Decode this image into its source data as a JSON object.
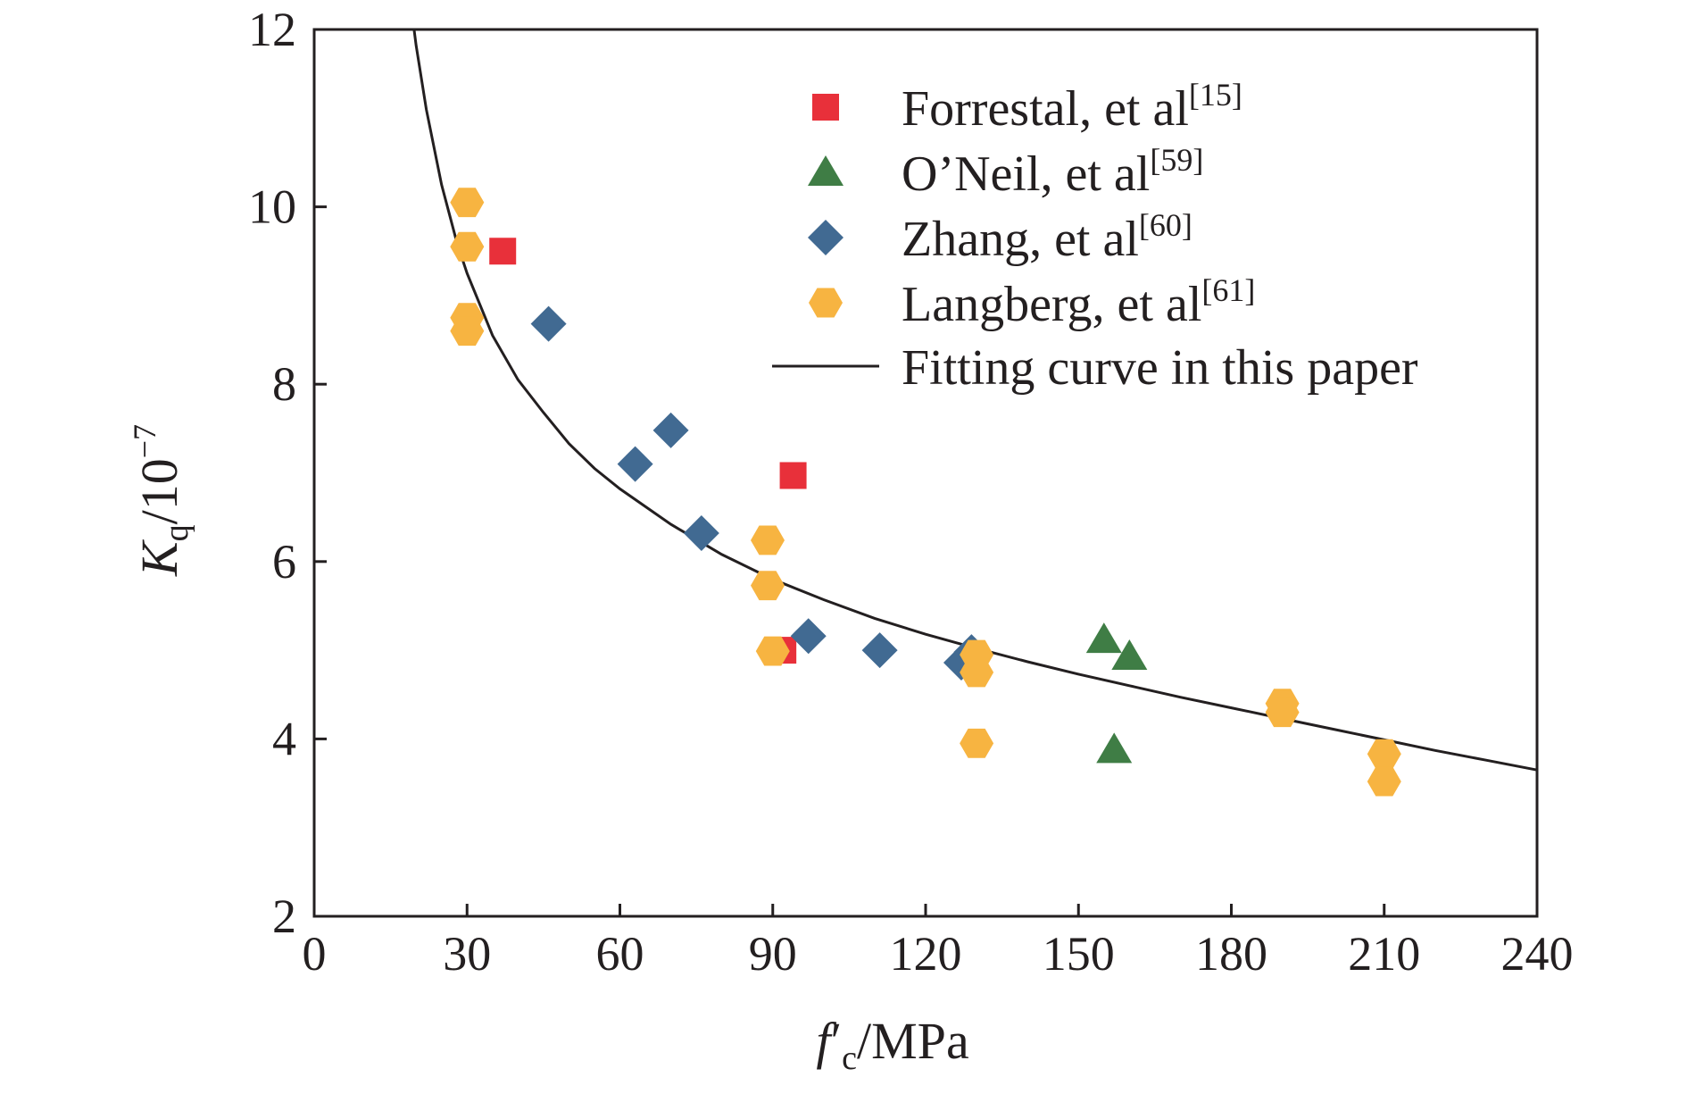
{
  "chart_data": {
    "type": "scatter",
    "xlim": [
      0,
      240
    ],
    "ylim": [
      2,
      12
    ],
    "x_ticks": [
      "0",
      "30",
      "60",
      "90",
      "120",
      "150",
      "180",
      "210",
      "240"
    ],
    "y_ticks": [
      "2",
      "4",
      "6",
      "8",
      "10",
      "12"
    ],
    "xlabel": {
      "main": "f",
      "prime": "′",
      "sub": "c",
      "rest": "/MPa"
    },
    "ylabel": {
      "main": "K",
      "sub": "q",
      "rest": "/10",
      "sup": "−7"
    },
    "legend_position": "top-right",
    "grid": false,
    "series": [
      {
        "name": "Forrestal, et al",
        "ref": "[15]",
        "marker": "square",
        "color": "#e8303a",
        "points": [
          [
            37,
            9.5
          ],
          [
            94,
            6.97
          ],
          [
            92,
            5.0
          ]
        ]
      },
      {
        "name": "O’Neil, et al",
        "ref": "[59]",
        "marker": "triangle",
        "color": "#3f7d45",
        "points": [
          [
            155,
            5.12
          ],
          [
            160,
            4.93
          ],
          [
            157,
            3.88
          ]
        ]
      },
      {
        "name": "Zhang, et al",
        "ref": "[60]",
        "marker": "diamond",
        "color": "#416a92",
        "points": [
          [
            46,
            8.68
          ],
          [
            63,
            7.1
          ],
          [
            70,
            7.48
          ],
          [
            76,
            6.32
          ],
          [
            97,
            5.16
          ],
          [
            111,
            5.0
          ],
          [
            127,
            4.86
          ],
          [
            129,
            4.98
          ]
        ]
      },
      {
        "name": "Langberg, et al",
        "ref": "[61]",
        "marker": "hexagon",
        "color": "#f7b441",
        "points": [
          [
            30,
            10.05
          ],
          [
            30,
            9.55
          ],
          [
            30,
            8.75
          ],
          [
            30,
            8.6
          ],
          [
            89,
            6.24
          ],
          [
            89,
            5.73
          ],
          [
            90,
            4.99
          ],
          [
            130,
            4.95
          ],
          [
            130,
            4.75
          ],
          [
            130,
            3.95
          ],
          [
            190,
            4.4
          ],
          [
            190,
            4.3
          ],
          [
            210,
            3.83
          ],
          [
            210,
            3.52
          ]
        ]
      }
    ],
    "fit": {
      "name": "Fitting curve in this paper",
      "color": "#231f20",
      "x": [
        19.6,
        20,
        22,
        25,
        28,
        30,
        35,
        40,
        45,
        50,
        55,
        60,
        70,
        80,
        90,
        100,
        110,
        120,
        130,
        140,
        150,
        160,
        170,
        180,
        190,
        200,
        210,
        220,
        230,
        240
      ],
      "y": [
        12.0,
        11.82,
        11.1,
        10.25,
        9.6,
        9.25,
        8.55,
        8.05,
        7.68,
        7.33,
        7.05,
        6.82,
        6.42,
        6.08,
        5.8,
        5.57,
        5.36,
        5.18,
        5.02,
        4.87,
        4.73,
        4.6,
        4.47,
        4.35,
        4.23,
        4.11,
        3.99,
        3.87,
        3.76,
        3.65
      ]
    }
  }
}
